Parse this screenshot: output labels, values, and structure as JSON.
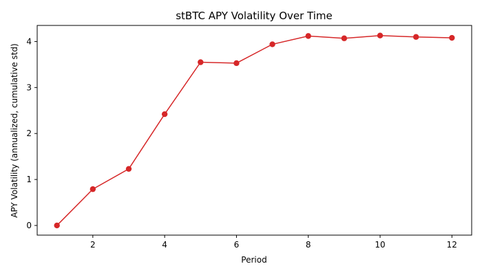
{
  "chart_data": {
    "type": "line",
    "title": "stBTC APY Volatility Over Time",
    "xlabel": "Period",
    "ylabel": "APY Volatility (annualized, cumulative std)",
    "x": [
      1,
      2,
      3,
      4,
      5,
      6,
      7,
      8,
      9,
      10,
      11,
      12
    ],
    "series": [
      {
        "values": [
          0.0,
          0.79,
          1.23,
          2.42,
          3.55,
          3.53,
          3.94,
          4.12,
          4.07,
          4.13,
          4.1,
          4.08
        ]
      }
    ],
    "xlim": [
      0.45,
      12.55
    ],
    "ylim": [
      -0.21,
      4.35
    ],
    "xticks": [
      2,
      4,
      6,
      8,
      10,
      12
    ],
    "yticks": [
      0,
      1,
      2,
      3,
      4
    ],
    "color": "#d62728",
    "grid": false,
    "markers": true
  }
}
